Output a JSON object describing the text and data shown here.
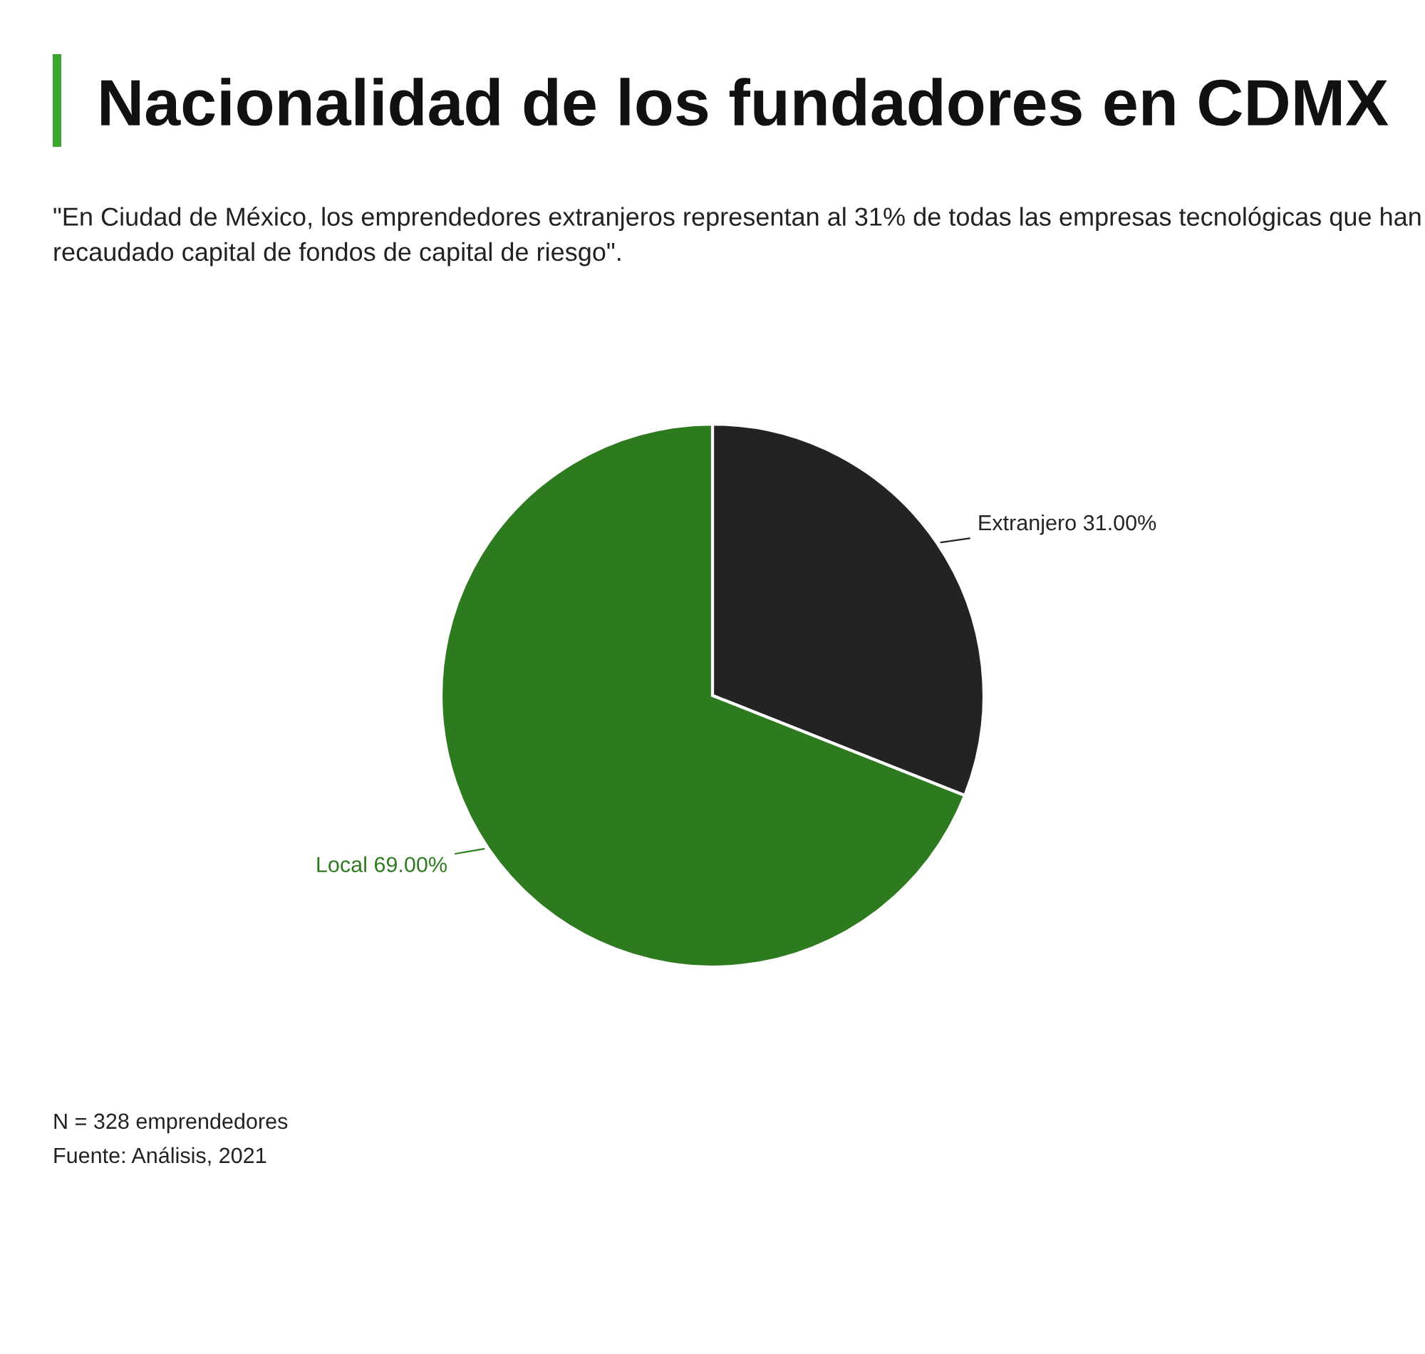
{
  "chart_data": {
    "type": "pie",
    "title": "Nacionalidad de los fundadores en CDMX",
    "subtitle": "\"En Ciudad de México, los emprendedores extranjeros representan al 31% de todas las empresas tecnológicas que han recaudado capital de fondos de capital de riesgo\".",
    "categories": [
      "Extranjero",
      "Local"
    ],
    "values": [
      31,
      69
    ],
    "colors": [
      "#232323",
      "#2e7b1f"
    ],
    "value_labels": [
      "31.00%",
      "69.00%"
    ],
    "annotations": [
      "N = 328 emprendedores",
      "Fuente: Análisis, 2021"
    ]
  }
}
